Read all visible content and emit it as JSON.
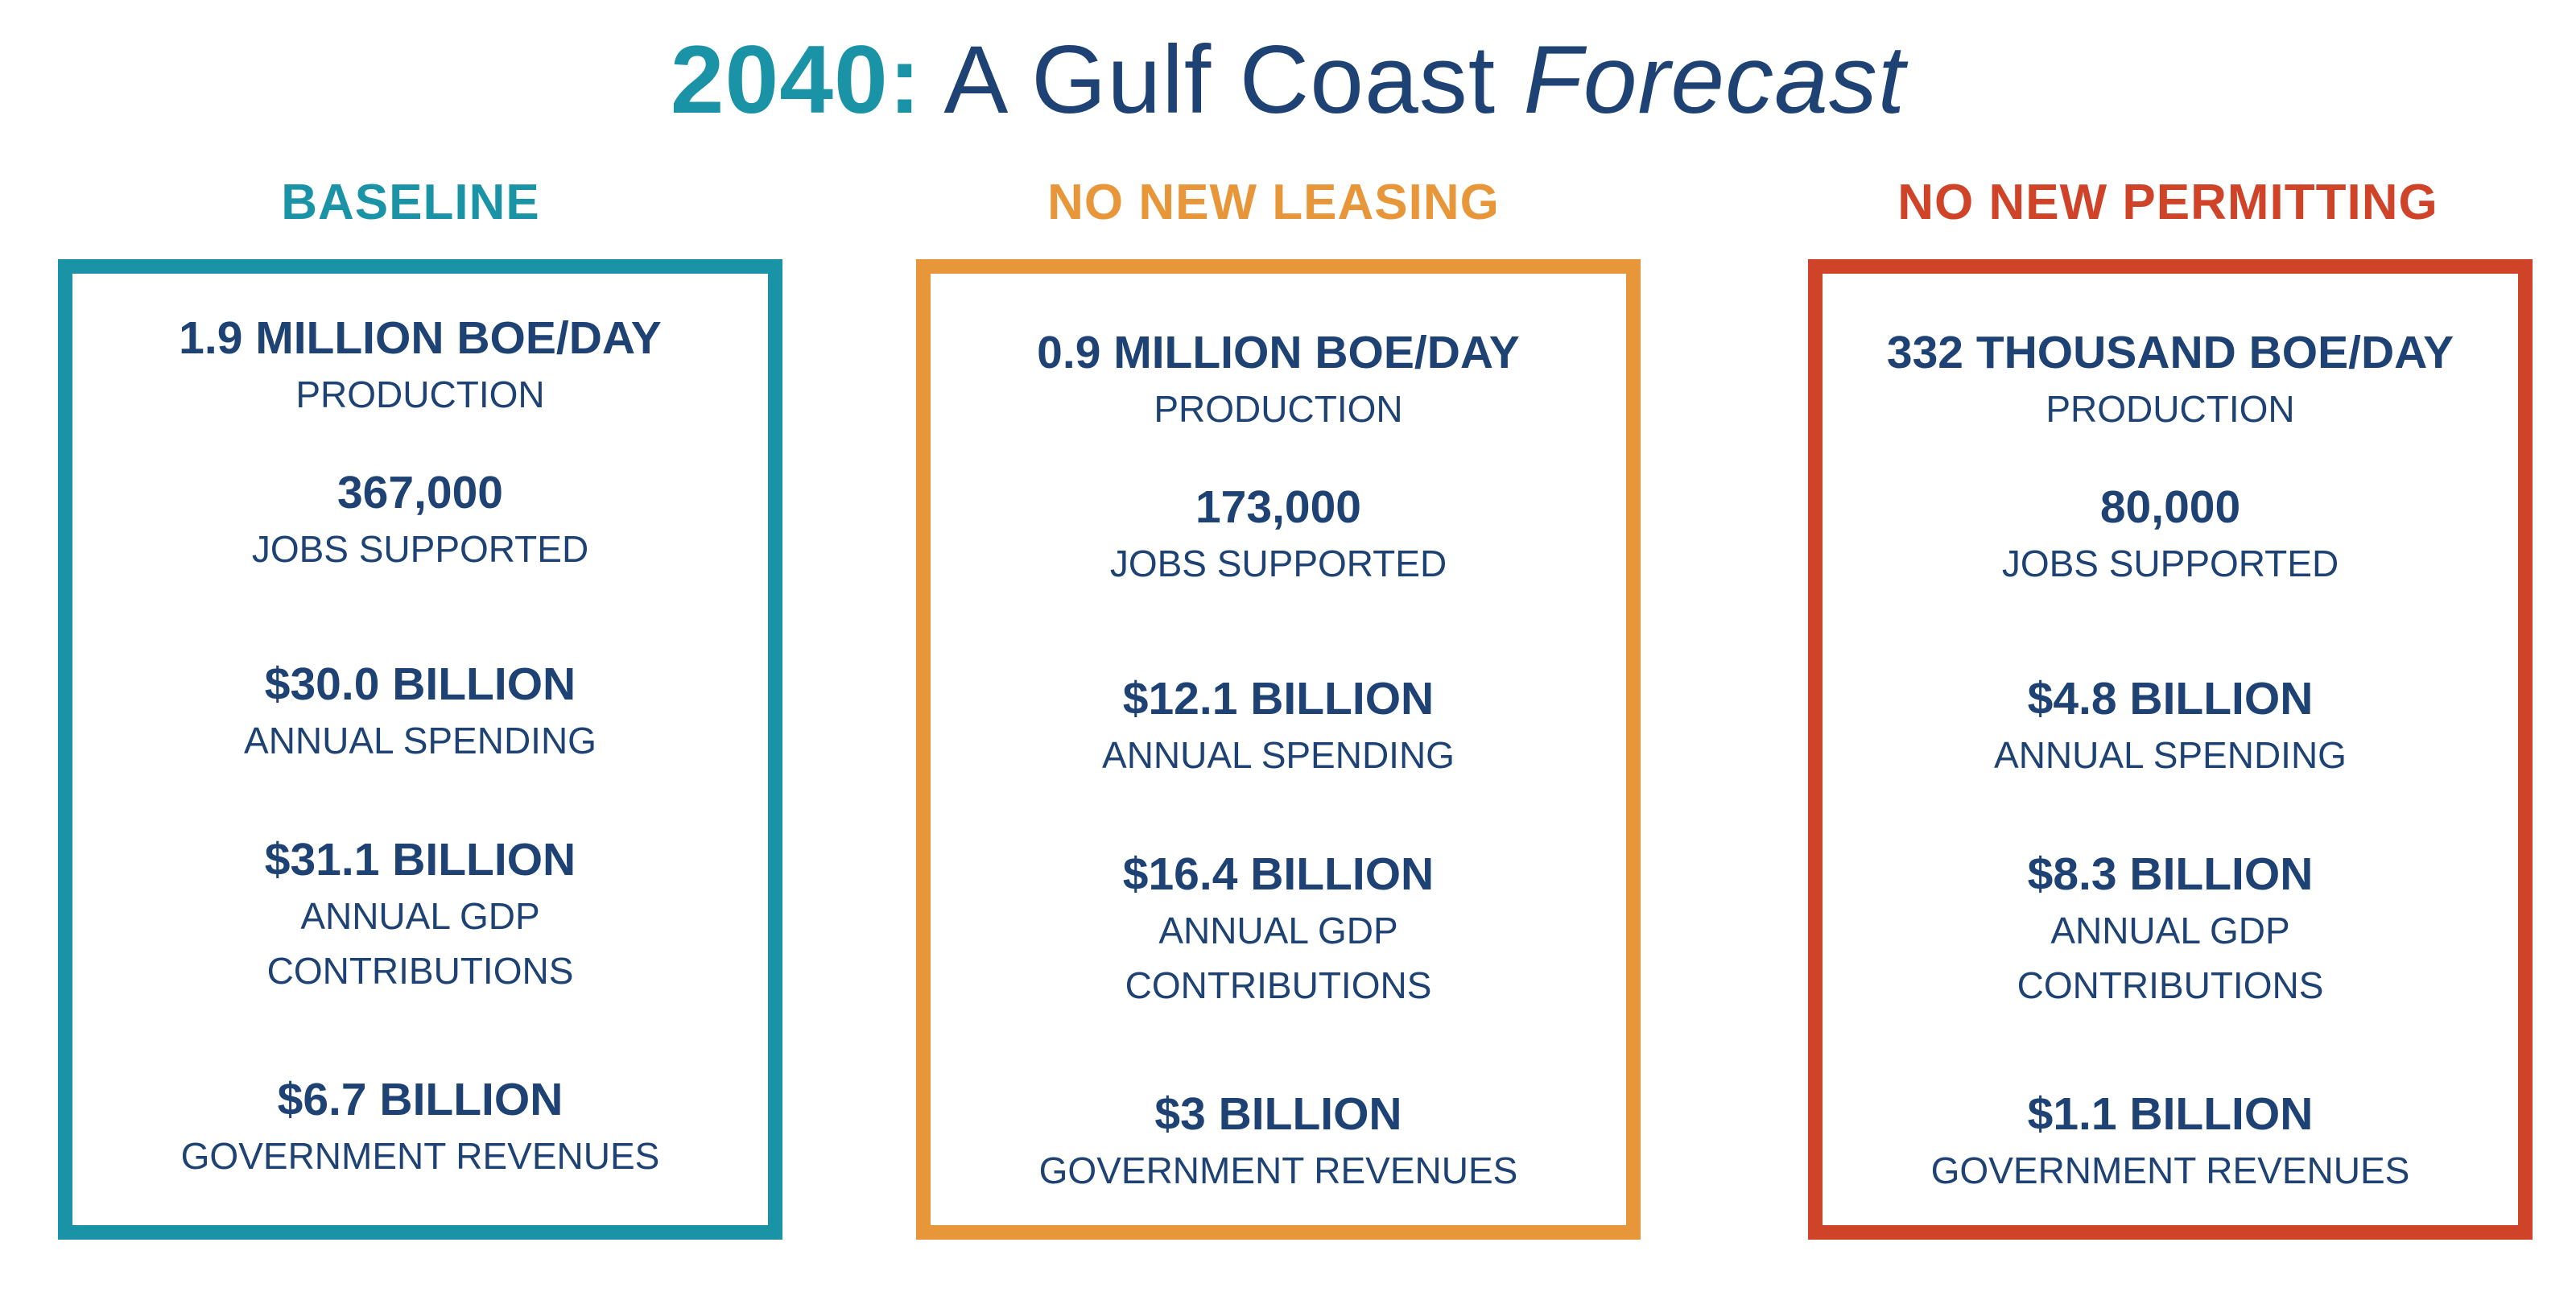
{
  "title": {
    "year": "2040:",
    "main": "A Gulf Coast",
    "emphasis": "Forecast"
  },
  "colors": {
    "baseline": "#1a93a6",
    "no_new_leasing": "#e8963a",
    "no_new_permitting": "#cf4429",
    "navy": "#1d4273"
  },
  "scenarios": [
    {
      "name": "BASELINE",
      "metrics": [
        {
          "value": "1.9 MILLION BOE/DAY",
          "label": "PRODUCTION"
        },
        {
          "value": "367,000",
          "label": "JOBS SUPPORTED"
        },
        {
          "value": "$30.0 BILLION",
          "label": "ANNUAL SPENDING"
        },
        {
          "value": "$31.1 BILLION",
          "label_line1": "ANNUAL GDP",
          "label_line2": "CONTRIBUTIONS"
        },
        {
          "value": "$6.7 BILLION",
          "label": "GOVERNMENT REVENUES"
        }
      ]
    },
    {
      "name": "NO NEW LEASING",
      "metrics": [
        {
          "value": "0.9 MILLION BOE/DAY",
          "label": "PRODUCTION"
        },
        {
          "value": "173,000",
          "label": "JOBS SUPPORTED"
        },
        {
          "value": "$12.1 BILLION",
          "label": "ANNUAL SPENDING"
        },
        {
          "value": "$16.4 BILLION",
          "label_line1": "ANNUAL GDP",
          "label_line2": "CONTRIBUTIONS"
        },
        {
          "value": "$3 BILLION",
          "label": "GOVERNMENT REVENUES"
        }
      ]
    },
    {
      "name": "NO NEW PERMITTING",
      "metrics": [
        {
          "value": "332 THOUSAND BOE/DAY",
          "label": "PRODUCTION"
        },
        {
          "value": "80,000",
          "label": "JOBS SUPPORTED"
        },
        {
          "value": "$4.8 BILLION",
          "label": "ANNUAL SPENDING"
        },
        {
          "value": "$8.3 BILLION",
          "label_line1": "ANNUAL GDP",
          "label_line2": "CONTRIBUTIONS"
        },
        {
          "value": "$1.1 BILLION",
          "label": "GOVERNMENT REVENUES"
        }
      ]
    }
  ]
}
